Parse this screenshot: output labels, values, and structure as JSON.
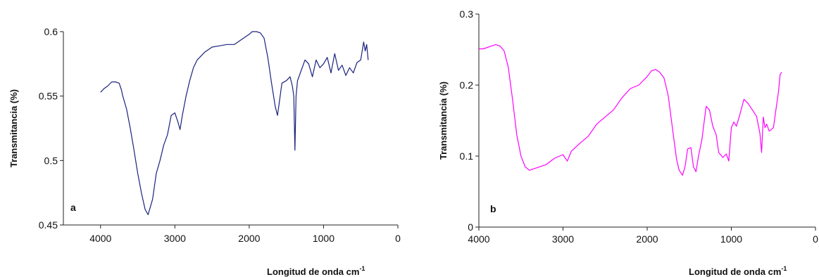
{
  "chart_data": [
    {
      "type": "line",
      "panel_label": "a",
      "xlabel": "Longitud de onda cm",
      "xlabel_superscript": "-1",
      "ylabel": "Transmitancia (%)",
      "xlim": [
        4500,
        0
      ],
      "ylim": [
        0.45,
        0.6
      ],
      "x_ticks": [
        4000,
        3000,
        2000,
        1000,
        0
      ],
      "x_tick_labels": [
        "4000",
        "3000",
        "2000",
        "1000",
        "0"
      ],
      "y_ticks": [
        0.45,
        0.5,
        0.55,
        0.6
      ],
      "y_tick_labels": [
        "0.45",
        "0.5",
        "0.55",
        "0.6"
      ],
      "grid": false,
      "series": [
        {
          "color": "#1a237e",
          "x": [
            4000,
            3950,
            3900,
            3850,
            3800,
            3750,
            3720,
            3700,
            3650,
            3600,
            3550,
            3500,
            3450,
            3400,
            3360,
            3300,
            3250,
            3200,
            3150,
            3100,
            3050,
            3000,
            2960,
            2930,
            2900,
            2850,
            2800,
            2750,
            2700,
            2600,
            2500,
            2400,
            2300,
            2200,
            2100,
            2000,
            1960,
            1900,
            1850,
            1800,
            1750,
            1700,
            1650,
            1620,
            1600,
            1560,
            1500,
            1450,
            1420,
            1400,
            1385,
            1370,
            1350,
            1300,
            1250,
            1200,
            1150,
            1100,
            1050,
            1000,
            950,
            900,
            850,
            800,
            750,
            700,
            650,
            600,
            550,
            500,
            460,
            440,
            420,
            400
          ],
          "y": [
            0.553,
            0.556,
            0.558,
            0.561,
            0.561,
            0.56,
            0.555,
            0.55,
            0.54,
            0.525,
            0.508,
            0.49,
            0.475,
            0.462,
            0.458,
            0.47,
            0.49,
            0.5,
            0.512,
            0.52,
            0.535,
            0.537,
            0.53,
            0.524,
            0.535,
            0.55,
            0.562,
            0.572,
            0.578,
            0.584,
            0.588,
            0.589,
            0.59,
            0.59,
            0.594,
            0.598,
            0.6,
            0.6,
            0.599,
            0.595,
            0.58,
            0.56,
            0.542,
            0.535,
            0.543,
            0.56,
            0.562,
            0.565,
            0.558,
            0.55,
            0.508,
            0.55,
            0.562,
            0.57,
            0.578,
            0.575,
            0.565,
            0.578,
            0.572,
            0.575,
            0.58,
            0.568,
            0.583,
            0.57,
            0.574,
            0.566,
            0.572,
            0.568,
            0.576,
            0.578,
            0.592,
            0.585,
            0.59,
            0.578
          ]
        }
      ]
    },
    {
      "type": "line",
      "panel_label": "b",
      "xlabel": "Longitud de onda cm",
      "xlabel_superscript": "-1",
      "ylabel": "Transmitancia (%)",
      "xlim": [
        4000,
        0
      ],
      "ylim": [
        0,
        0.3
      ],
      "x_ticks": [
        4000,
        3000,
        2000,
        1000,
        0
      ],
      "x_tick_labels": [
        "4000",
        "3000",
        "2000",
        "1000",
        "0"
      ],
      "y_ticks": [
        0,
        0.1,
        0.2,
        0.3
      ],
      "y_tick_labels": [
        "0",
        "0.1",
        "0.2",
        "0.3"
      ],
      "grid": false,
      "series": [
        {
          "color": "#ff00ff",
          "x": [
            4000,
            3950,
            3900,
            3850,
            3800,
            3750,
            3700,
            3650,
            3600,
            3550,
            3500,
            3450,
            3400,
            3300,
            3200,
            3100,
            3000,
            2950,
            2900,
            2800,
            2700,
            2600,
            2500,
            2400,
            2300,
            2200,
            2100,
            2000,
            1950,
            1900,
            1850,
            1800,
            1750,
            1700,
            1650,
            1620,
            1580,
            1550,
            1520,
            1480,
            1450,
            1420,
            1390,
            1350,
            1300,
            1260,
            1220,
            1180,
            1150,
            1100,
            1060,
            1030,
            1000,
            970,
            940,
            900,
            850,
            800,
            750,
            700,
            660,
            640,
            620,
            600,
            580,
            550,
            500,
            470,
            440,
            420,
            400
          ],
          "y": [
            0.251,
            0.251,
            0.253,
            0.255,
            0.257,
            0.255,
            0.248,
            0.225,
            0.18,
            0.13,
            0.1,
            0.085,
            0.08,
            0.084,
            0.088,
            0.097,
            0.102,
            0.093,
            0.107,
            0.118,
            0.128,
            0.145,
            0.155,
            0.165,
            0.182,
            0.195,
            0.2,
            0.212,
            0.22,
            0.222,
            0.218,
            0.21,
            0.185,
            0.14,
            0.095,
            0.08,
            0.073,
            0.085,
            0.11,
            0.112,
            0.085,
            0.078,
            0.1,
            0.123,
            0.17,
            0.165,
            0.142,
            0.13,
            0.105,
            0.098,
            0.103,
            0.093,
            0.14,
            0.148,
            0.142,
            0.158,
            0.18,
            0.174,
            0.165,
            0.156,
            0.132,
            0.105,
            0.155,
            0.14,
            0.145,
            0.135,
            0.14,
            0.165,
            0.19,
            0.215,
            0.218
          ]
        }
      ]
    }
  ]
}
